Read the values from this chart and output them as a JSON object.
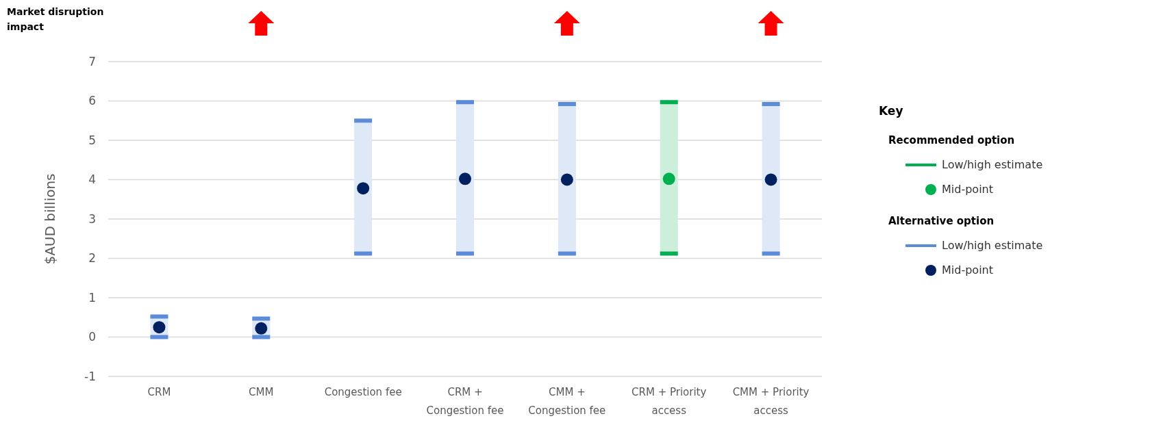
{
  "chart_data": {
    "type": "bar",
    "ylabel": "$AUD billions",
    "legend_title": "Key",
    "annotations": [
      "Market disruption impact",
      "Recommended option",
      "Alternative option"
    ],
    "categories": [
      "CRM",
      "CMM",
      "Congestion fee",
      "CRM + Congestion fee",
      "CMM + Congestion fee",
      "CRM + Priority access",
      "CMM + Priority access"
    ],
    "series": [
      {
        "name": "Low/high estimate",
        "color": "#00b050",
        "base": [
          null,
          null,
          null,
          null,
          null,
          2.12,
          null
        ],
        "values": [
          null,
          null,
          null,
          null,
          null,
          3.85,
          null
        ]
      },
      {
        "type": "scatter",
        "name": "Mid-point",
        "color": "#00b050",
        "values": [
          null,
          null,
          null,
          null,
          null,
          4.02,
          null
        ]
      },
      {
        "name": "Low/high estimate",
        "color": "#5b8bd9",
        "base": [
          0,
          0,
          2.12,
          2.12,
          2.12,
          null,
          2.12
        ],
        "values": [
          0.52,
          0.47,
          3.38,
          3.85,
          3.8,
          null,
          3.8
        ]
      },
      {
        "type": "scatter",
        "name": "Mid-point",
        "color": "#002060",
        "values": [
          0.25,
          0.22,
          3.78,
          4.02,
          4.0,
          null,
          4.0
        ]
      }
    ],
    "ylim": [
      -1,
      7
    ],
    "yticks": [
      -1,
      0,
      1,
      2,
      3,
      4,
      5,
      6,
      7
    ],
    "grid": "y",
    "legend": "right",
    "marker": "circle"
  }
}
